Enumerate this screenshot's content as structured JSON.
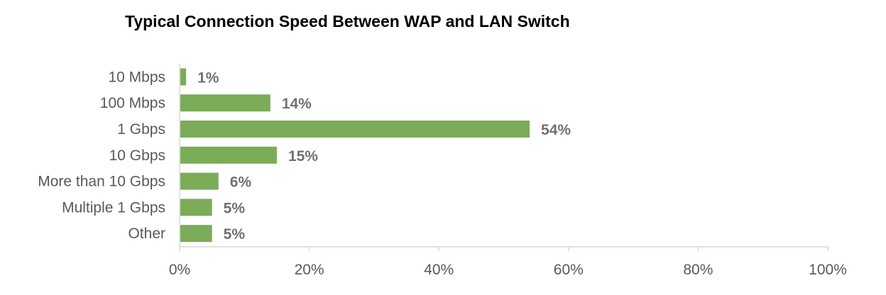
{
  "chart_data": {
    "type": "bar",
    "orientation": "horizontal",
    "title": "Typical Connection Speed Between WAP and LAN Switch",
    "xlabel": "",
    "ylabel": "",
    "categories": [
      "10 Mbps",
      "100 Mbps",
      "1 Gbps",
      "10 Gbps",
      "More than 10 Gbps",
      "Multiple 1 Gbps",
      "Other"
    ],
    "values": [
      1,
      14,
      54,
      15,
      6,
      5,
      5
    ],
    "data_labels": [
      "1%",
      "14%",
      "54%",
      "15%",
      "6%",
      "5%",
      "5%"
    ],
    "xlim": [
      0,
      100
    ],
    "x_ticks": [
      0,
      20,
      40,
      60,
      80,
      100
    ],
    "x_tick_labels": [
      "0%",
      "20%",
      "40%",
      "60%",
      "80%",
      "100%"
    ],
    "grid": false,
    "legend": "none",
    "colors": {
      "bar": "#7BAC57",
      "axis": "#D9D9D9",
      "label": "#595959",
      "data_label": "#707070",
      "title": "#000000"
    }
  }
}
